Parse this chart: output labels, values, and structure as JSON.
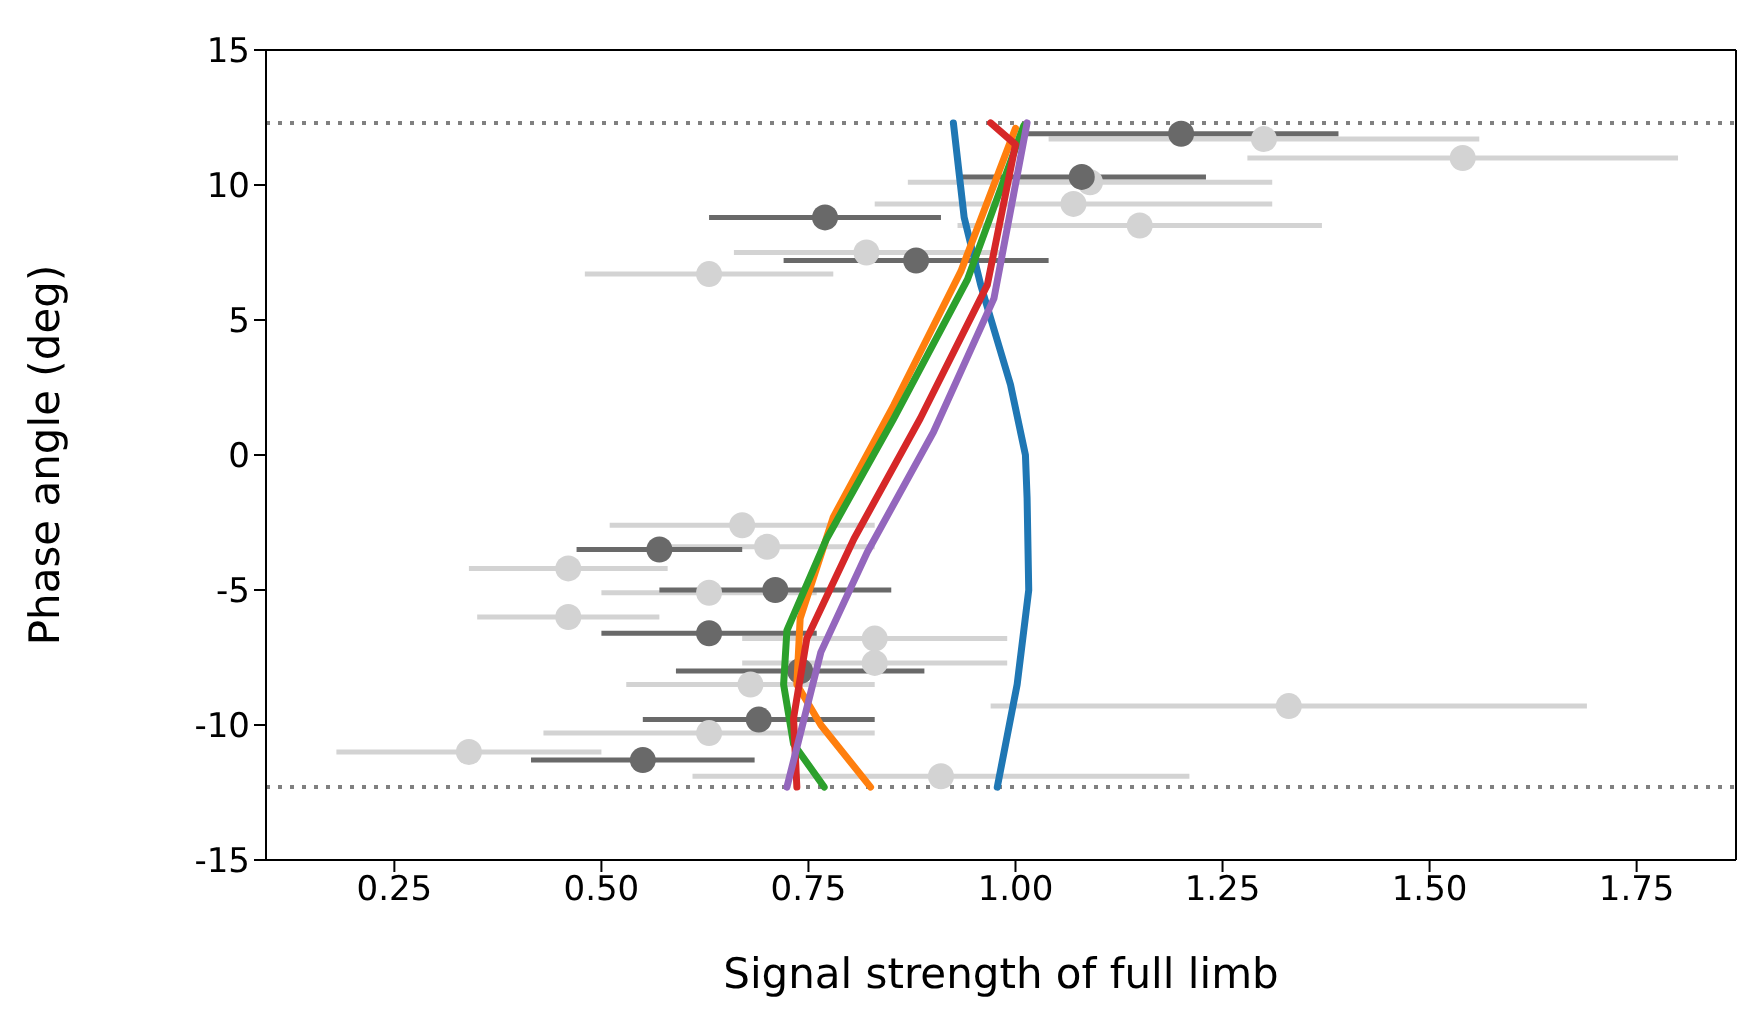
{
  "chart_data": {
    "type": "scatter",
    "xlabel": "Signal strength of full limb",
    "ylabel": "Phase angle (deg)",
    "xlim": [
      0.095,
      1.87
    ],
    "xticks": [
      0.25,
      {
        "value": 0.5,
        "label": "0.50"
      },
      0.75,
      {
        "value": 1.0,
        "label": "1.00"
      },
      1.25,
      {
        "value": 1.5,
        "label": "1.50"
      },
      1.75
    ],
    "ylim": [
      -15,
      15
    ],
    "yticks": [
      -15,
      -10,
      -5,
      0,
      5,
      10,
      15
    ],
    "grid": false,
    "legend": false,
    "marker": "circle",
    "ref_lines": [
      {
        "axis": "y",
        "value": 12.3,
        "color": "#808080",
        "line_style": "dotted"
      },
      {
        "axis": "y",
        "value": -12.3,
        "color": "#808080",
        "line_style": "dotted"
      }
    ],
    "series": [
      {
        "type": "scatter",
        "color": "#d3d3d3",
        "x": [
          1.3,
          1.54,
          1.09,
          1.07,
          1.15,
          0.82,
          0.63,
          0.67,
          0.7,
          0.46,
          0.63,
          0.46,
          0.83,
          0.83,
          0.68,
          1.33,
          0.63,
          0.34,
          0.91
        ],
        "values": [
          11.7,
          11.0,
          10.1,
          9.3,
          8.5,
          7.5,
          6.7,
          -2.6,
          -3.4,
          -4.2,
          -5.1,
          -6.0,
          -6.8,
          -7.7,
          -8.5,
          -9.3,
          -10.3,
          -11.0,
          -11.9
        ],
        "xerrors": [
          0.26,
          0.26,
          0.22,
          0.24,
          0.22,
          0.16,
          0.15,
          0.16,
          0.13,
          0.12,
          0.13,
          0.11,
          0.16,
          0.16,
          0.15,
          0.36,
          0.2,
          0.16,
          0.3
        ]
      },
      {
        "type": "scatter",
        "color": "#696969",
        "x": [
          1.2,
          1.08,
          0.77,
          0.88,
          0.57,
          0.71,
          0.63,
          0.74,
          0.69,
          0.55
        ],
        "values": [
          11.9,
          10.3,
          8.8,
          7.2,
          -3.5,
          -5.0,
          -6.6,
          -8.0,
          -9.8,
          -11.3
        ],
        "xerrors": [
          0.19,
          0.15,
          0.14,
          0.16,
          0.1,
          0.14,
          0.13,
          0.15,
          0.14,
          0.135
        ]
      },
      {
        "type": "line",
        "color": "#1f77b4",
        "marker": "none",
        "line_style": "solid",
        "x": [
          0.925,
          0.938,
          0.958,
          0.994,
          1.012,
          1.014,
          1.016,
          1.002,
          0.978
        ],
        "values": [
          12.3,
          8.8,
          6.3,
          2.6,
          0,
          -1.6,
          -5,
          -8.5,
          -12.3
        ]
      },
      {
        "type": "line",
        "color": "#ff7f0e",
        "marker": "none",
        "line_style": "solid",
        "x": [
          1.0,
          0.934,
          0.853,
          0.78,
          0.74,
          0.736,
          0.765,
          0.825
        ],
        "values": [
          12.1,
          6.8,
          1.85,
          -2.3,
          -6.05,
          -8.5,
          -10.0,
          -12.3
        ]
      },
      {
        "type": "line",
        "color": "#2ca02c",
        "marker": "none",
        "line_style": "solid",
        "x": [
          1.01,
          0.942,
          0.853,
          0.772,
          0.724,
          0.72,
          0.732,
          0.769
        ],
        "values": [
          12.2,
          6.5,
          1.35,
          -3.1,
          -6.5,
          -8.5,
          -10.7,
          -12.3
        ]
      },
      {
        "type": "line",
        "color": "#d62728",
        "marker": "none",
        "line_style": "solid",
        "x": [
          0.97,
          1.0,
          0.966,
          0.885,
          0.805,
          0.748,
          0.732,
          0.736
        ],
        "values": [
          12.3,
          11.5,
          6.3,
          1.35,
          -3.1,
          -6.8,
          -9.75,
          -12.3
        ]
      },
      {
        "type": "line",
        "color": "#9467bd",
        "marker": "none",
        "line_style": "solid",
        "x": [
          1.014,
          0.974,
          0.901,
          0.821,
          0.765,
          0.724
        ],
        "values": [
          12.3,
          5.8,
          0.85,
          -3.6,
          -7.3,
          -12.3
        ]
      }
    ]
  }
}
